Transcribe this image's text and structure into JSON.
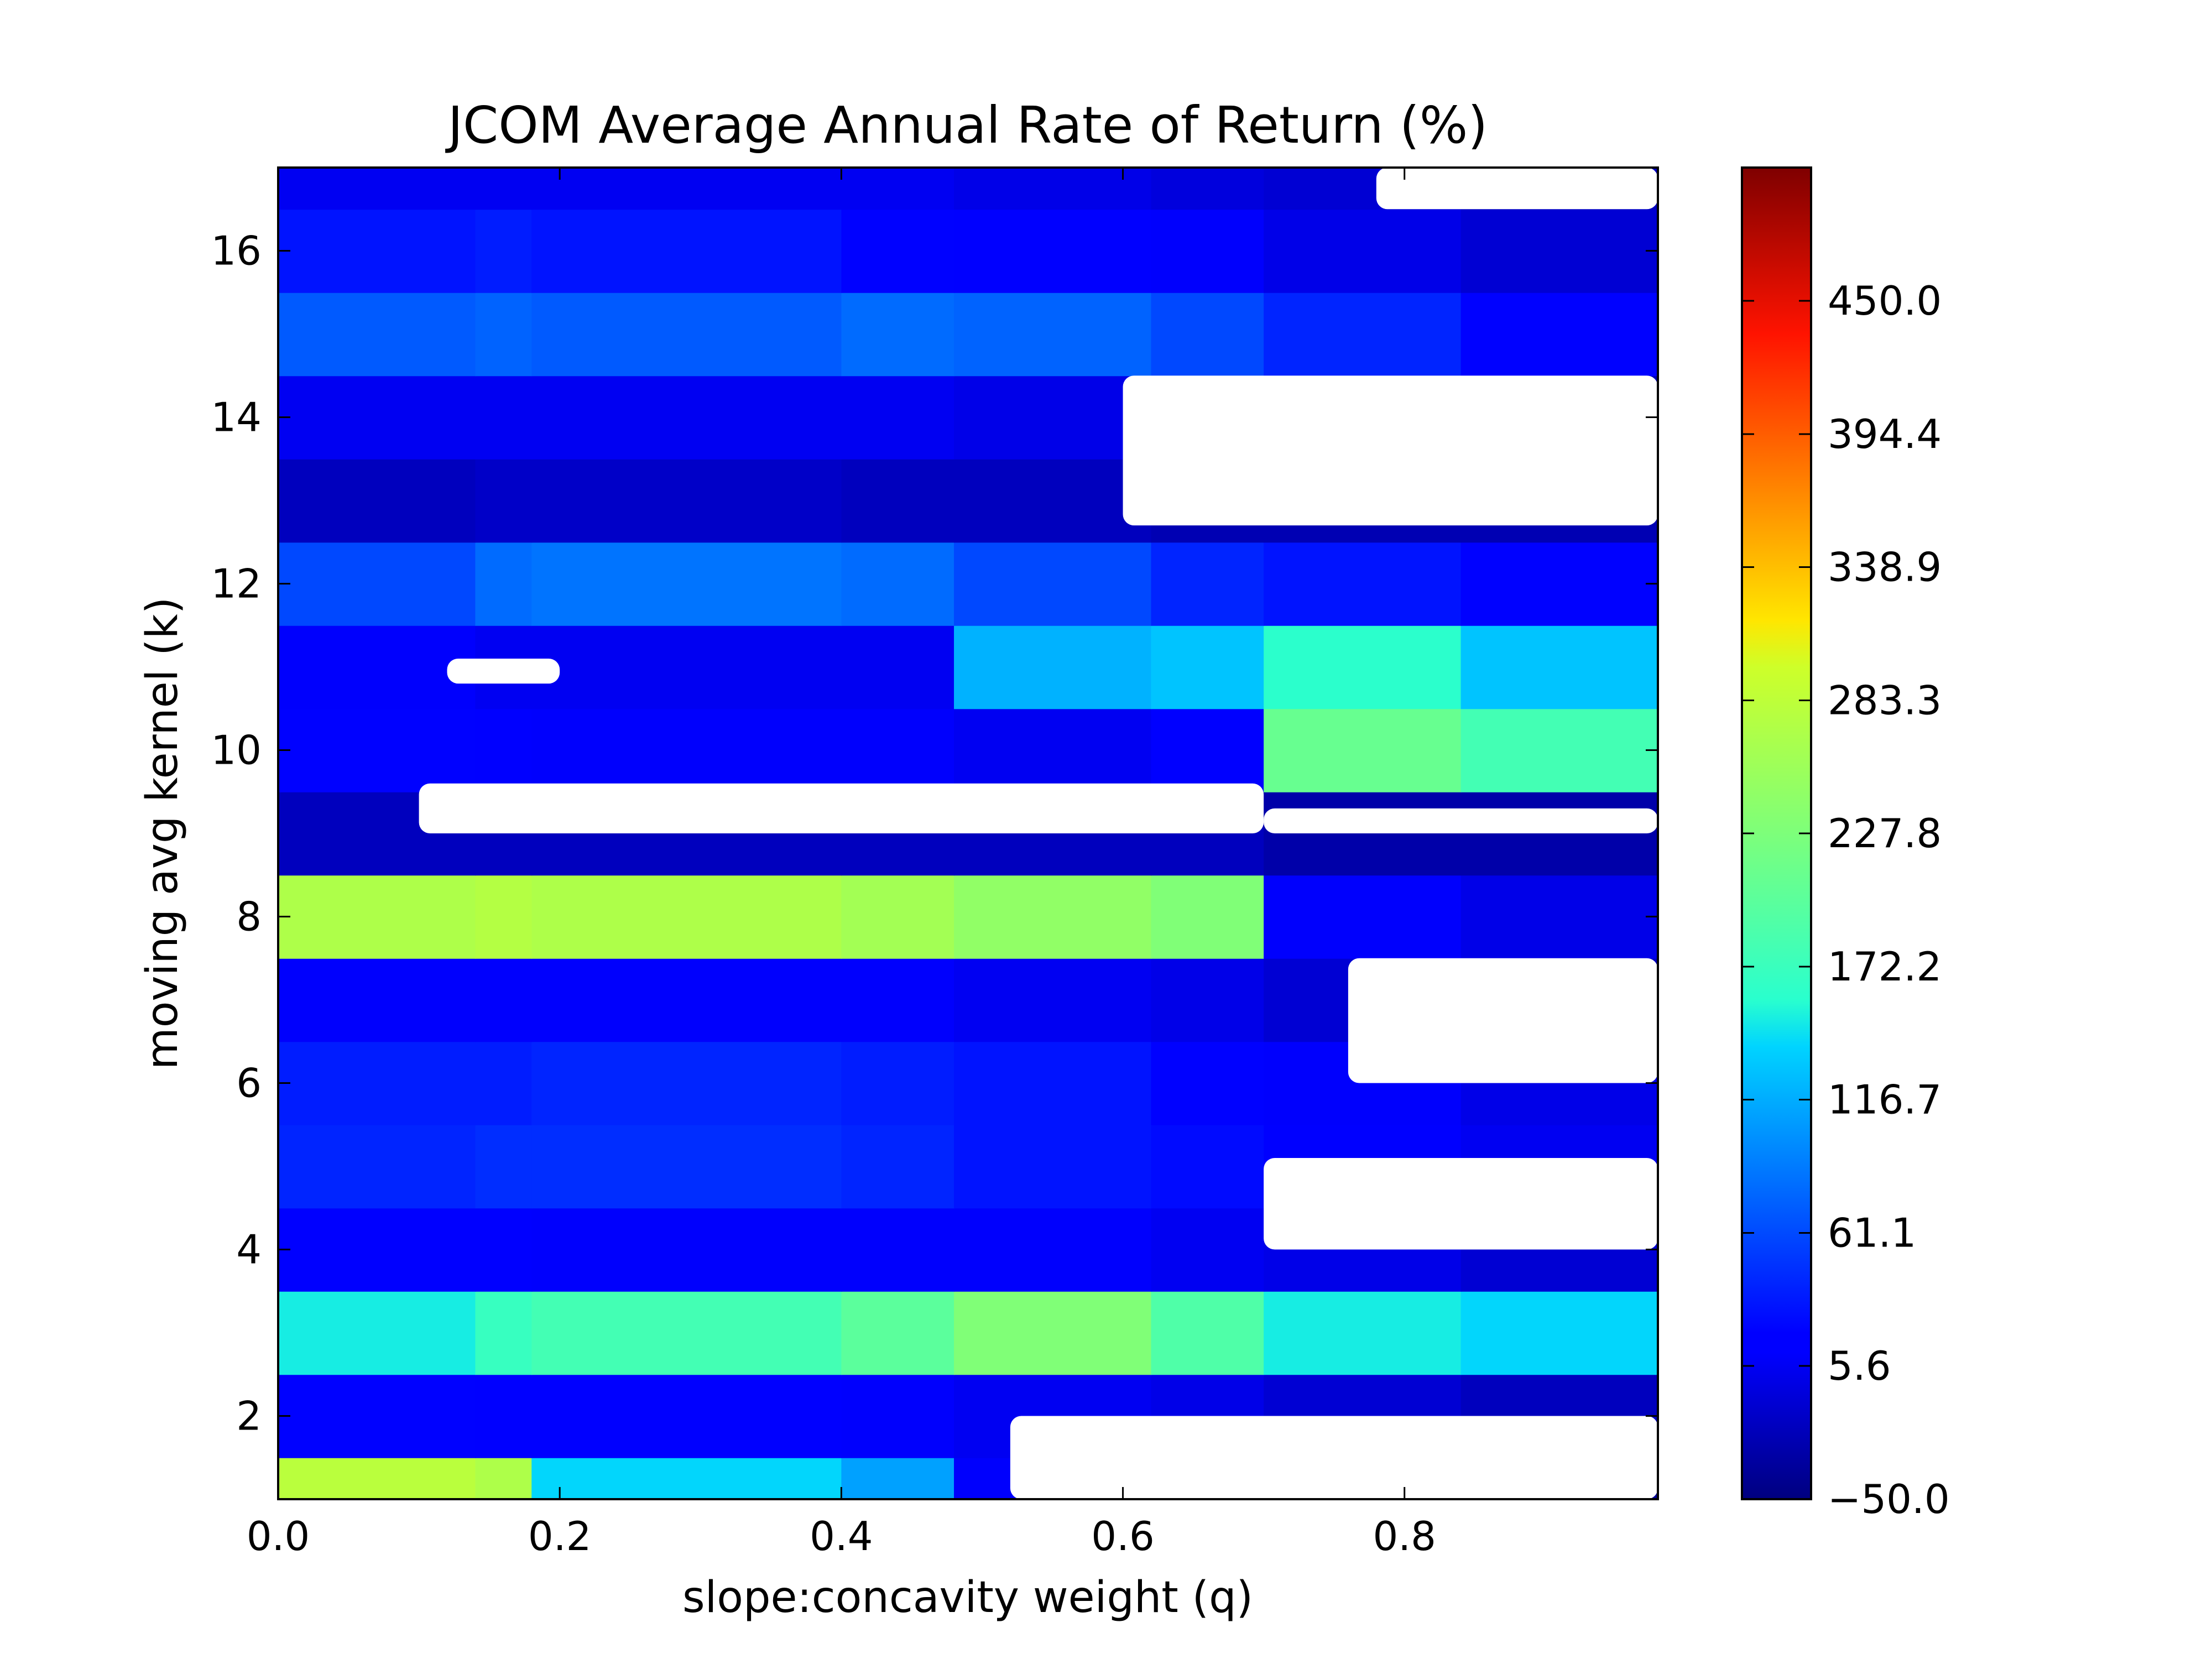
{
  "chart_data": {
    "type": "heatmap",
    "title": "JCOM Average Annual Rate of Return (%)",
    "xlabel": "slope:concavity weight (q)",
    "ylabel": "moving avg kernel (k)",
    "xlim": [
      0,
      0.98
    ],
    "ylim": [
      1,
      17
    ],
    "x_ticks": [
      0.0,
      0.2,
      0.4,
      0.6,
      0.8
    ],
    "x_tick_labels": [
      "0.0",
      "0.2",
      "0.4",
      "0.6",
      "0.8"
    ],
    "y_ticks": [
      2,
      4,
      6,
      8,
      10,
      12,
      14,
      16
    ],
    "y_tick_labels": [
      "2",
      "4",
      "6",
      "8",
      "10",
      "12",
      "14",
      "16"
    ],
    "colormap": "jet",
    "colorbar": {
      "min": -50.0,
      "max": 505.6,
      "ticks": [
        -50.0,
        5.6,
        61.1,
        116.7,
        172.2,
        227.8,
        283.3,
        338.9,
        394.4,
        450.0
      ],
      "tick_labels": [
        "−50.0",
        "5.6",
        "61.1",
        "116.7",
        "172.2",
        "227.8",
        "283.3",
        "338.9",
        "394.4",
        "450.0"
      ]
    },
    "grid": false,
    "k_values": [
      1,
      2,
      3,
      4,
      5,
      6,
      7,
      8,
      9,
      10,
      11,
      12,
      13,
      14,
      15,
      16,
      17
    ],
    "q_segments": [
      0.0,
      0.14,
      0.18,
      0.4,
      0.48,
      0.62,
      0.7,
      0.84,
      0.98
    ],
    "masked_regions": [
      {
        "q": [
          0.12,
          0.2
        ],
        "k": [
          10.8,
          11.1
        ]
      },
      {
        "q": [
          0.1,
          0.7
        ],
        "k": [
          9.0,
          9.6
        ]
      },
      {
        "q": [
          0.7,
          0.98
        ],
        "k": [
          9.0,
          9.3
        ]
      },
      {
        "q": [
          0.6,
          0.98
        ],
        "k": [
          12.7,
          14.5
        ]
      },
      {
        "q": [
          0.76,
          0.98
        ],
        "k": [
          6.0,
          7.5
        ]
      },
      {
        "q": [
          0.7,
          0.98
        ],
        "k": [
          4.0,
          5.1
        ]
      },
      {
        "q": [
          0.52,
          0.98
        ],
        "k": [
          1.0,
          2.0
        ]
      },
      {
        "q": [
          0.78,
          0.98
        ],
        "k": [
          16.5,
          17.0
        ]
      }
    ],
    "rows": [
      {
        "k": 1,
        "values": [
          280,
          270,
          140,
          110,
          10,
          0,
          -20,
          -40,
          -45
        ]
      },
      {
        "k": 2,
        "values": [
          20,
          18,
          15,
          10,
          5,
          0,
          -10,
          -20,
          -25
        ]
      },
      {
        "k": 3,
        "values": [
          150,
          170,
          180,
          200,
          230,
          190,
          150,
          140,
          120
        ]
      },
      {
        "k": 4,
        "values": [
          15,
          15,
          10,
          10,
          10,
          5,
          0,
          -10,
          -20
        ]
      },
      {
        "k": 5,
        "values": [
          40,
          45,
          45,
          40,
          30,
          25,
          15,
          5,
          0
        ]
      },
      {
        "k": 6,
        "values": [
          35,
          35,
          40,
          35,
          30,
          20,
          10,
          0,
          -10
        ]
      },
      {
        "k": 7,
        "values": [
          10,
          10,
          10,
          10,
          5,
          0,
          -10,
          -20,
          -30
        ]
      },
      {
        "k": 8,
        "values": [
          270,
          275,
          270,
          260,
          245,
          230,
          10,
          0,
          -10
        ]
      },
      {
        "k": 9,
        "values": [
          -20,
          -20,
          -20,
          -20,
          -20,
          -20,
          -30,
          -30,
          -30
        ]
      },
      {
        "k": 10,
        "values": [
          20,
          15,
          10,
          10,
          5,
          15,
          210,
          180,
          110
        ]
      },
      {
        "k": 11,
        "values": [
          10,
          5,
          5,
          5,
          120,
          130,
          160,
          130,
          100
        ]
      },
      {
        "k": 12,
        "values": [
          60,
          80,
          85,
          80,
          60,
          40,
          30,
          20,
          15
        ]
      },
      {
        "k": 13,
        "values": [
          -20,
          -15,
          -15,
          -20,
          -20,
          -25,
          -25,
          -25,
          -30
        ]
      },
      {
        "k": 14,
        "values": [
          5,
          5,
          5,
          5,
          0,
          -10,
          -20,
          -25,
          -30
        ]
      },
      {
        "k": 15,
        "values": [
          70,
          75,
          70,
          80,
          75,
          60,
          40,
          20,
          10
        ]
      },
      {
        "k": 16,
        "values": [
          30,
          35,
          30,
          20,
          15,
          10,
          0,
          -10,
          -15
        ]
      },
      {
        "k": 17,
        "values": [
          5,
          5,
          5,
          5,
          0,
          -5,
          -10,
          -20,
          -30
        ]
      }
    ]
  }
}
